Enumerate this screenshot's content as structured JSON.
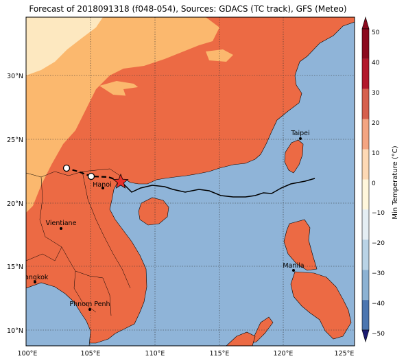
{
  "title": "Forecast of 2018091318 (f048-054), Sources: GDACS (TC track), GFS (Meteo)",
  "axes": {
    "x_ticks": [
      "100°E",
      "105°E",
      "110°E",
      "115°E",
      "120°E",
      "125°E"
    ],
    "y_ticks": [
      "30°N",
      "25°N",
      "20°N",
      "15°N",
      "10°N"
    ]
  },
  "colorbar": {
    "label": "Min Temperature (°C)",
    "ticks": [
      "50",
      "40",
      "30",
      "20",
      "10",
      "0",
      "−10",
      "−20",
      "−30",
      "−40",
      "−50"
    ],
    "colors": [
      "#8b0a1e",
      "#b2182b",
      "#d6604d",
      "#f4a582",
      "#fdd9b5",
      "#fff7dc",
      "#e4eef4",
      "#b9d3e6",
      "#8cb2d3",
      "#4c76b0",
      "#2a3f8f",
      "#1b1a70"
    ]
  },
  "map": {
    "ocean_color": "#8fb4d8",
    "land_colors": {
      "20_30": "#ec6a44",
      "10_20": "#fbb86e",
      "0_10": "#fde8c0"
    }
  },
  "cities": [
    {
      "name": "Taipei"
    },
    {
      "name": "Hanoi"
    },
    {
      "name": "Vientiane"
    },
    {
      "name": "Manila"
    },
    {
      "name": "Bangkok"
    },
    {
      "name": "Phnom Penh"
    }
  ],
  "track": {
    "line_color": "#000000",
    "storm_marker_color": "#e8302a"
  }
}
